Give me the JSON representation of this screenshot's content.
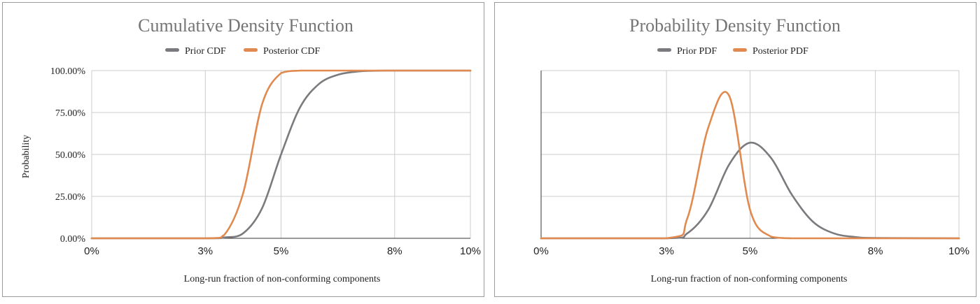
{
  "chart_data": [
    {
      "type": "line",
      "title": "Cumulative Density Function",
      "xlabel": "Long-run fraction of non-conforming components",
      "ylabel": "Probability",
      "xlim": [
        0,
        10
      ],
      "ylim": [
        0,
        100
      ],
      "x_ticks": [
        "0%",
        "3%",
        "5%",
        "8%",
        "10%"
      ],
      "y_ticks": [
        "0.00%",
        "25.00%",
        "50.00%",
        "75.00%",
        "100.00%"
      ],
      "grid": true,
      "legend_position": "top",
      "colors": {
        "prior": "#7b7b7f",
        "posterior": "#e08a4f"
      },
      "x": [
        0,
        3,
        3.5,
        4,
        4.5,
        5,
        5.5,
        6,
        6.5,
        7,
        7.5,
        8,
        10
      ],
      "series": [
        {
          "name": "Prior CDF",
          "values": [
            0,
            0,
            0.5,
            3,
            18,
            50,
            78,
            92,
            97.5,
            99.4,
            99.9,
            100,
            100
          ]
        },
        {
          "name": "Posterior CDF",
          "values": [
            0,
            0,
            2,
            27,
            80,
            98.5,
            100,
            100,
            100,
            100,
            100,
            100,
            100
          ]
        }
      ]
    },
    {
      "type": "line",
      "title": "Probability Density Function",
      "xlabel": "Long-run fraction of non-conforming components",
      "ylabel": "",
      "xlim": [
        0,
        10
      ],
      "ylim": [
        0,
        1
      ],
      "x_ticks": [
        "0%",
        "3%",
        "5%",
        "8%",
        "10%"
      ],
      "grid": true,
      "legend_position": "top",
      "colors": {
        "prior": "#7b7b7f",
        "posterior": "#e08a4f"
      },
      "x": [
        0,
        3,
        3.5,
        4,
        4.5,
        5,
        5.5,
        6,
        6.5,
        7,
        7.5,
        8,
        10
      ],
      "series": [
        {
          "name": "Prior PDF",
          "values": [
            0,
            0,
            0.03,
            0.17,
            0.44,
            0.57,
            0.48,
            0.26,
            0.1,
            0.03,
            0.008,
            0.002,
            0
          ]
        },
        {
          "name": "Posterior PDF",
          "values": [
            0,
            0,
            0.12,
            0.66,
            0.85,
            0.17,
            0.01,
            0,
            0,
            0,
            0,
            0,
            0
          ]
        }
      ]
    }
  ]
}
